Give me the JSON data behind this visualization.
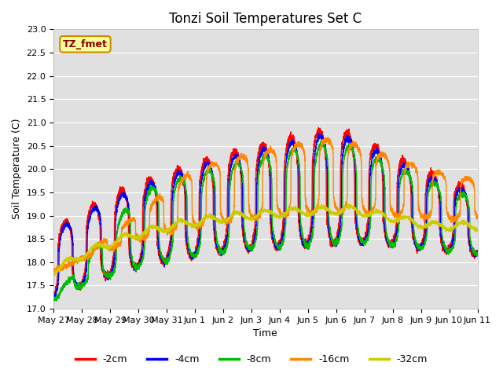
{
  "title": "Tonzi Soil Temperatures Set C",
  "xlabel": "Time",
  "ylabel": "Soil Temperature (C)",
  "ylim": [
    17.0,
    23.0
  ],
  "yticks": [
    17.0,
    17.5,
    18.0,
    18.5,
    19.0,
    19.5,
    20.0,
    20.5,
    21.0,
    21.5,
    22.0,
    22.5,
    23.0
  ],
  "xtick_labels": [
    "May 27",
    "May 28",
    "May 29",
    "May 30",
    "May 31",
    "Jun 1",
    "Jun 2",
    "Jun 3",
    "Jun 4",
    "Jun 5",
    "Jun 6",
    "Jun 7",
    "Jun 8",
    "Jun 9",
    "Jun 10",
    "Jun 11"
  ],
  "series_labels": [
    "-2cm",
    "-4cm",
    "-8cm",
    "-16cm",
    "-32cm"
  ],
  "series_colors": [
    "#ff0000",
    "#0000ff",
    "#00bb00",
    "#ff8800",
    "#cccc00"
  ],
  "annotation_text": "TZ_fmet",
  "annotation_bg": "#ffff99",
  "annotation_border": "#cc8800",
  "plot_bg": "#e0e0e0",
  "figure_bg": "#ffffff",
  "title_fontsize": 12,
  "axis_label_fontsize": 9,
  "tick_fontsize": 8,
  "legend_fontsize": 9,
  "linewidth": 1.0
}
